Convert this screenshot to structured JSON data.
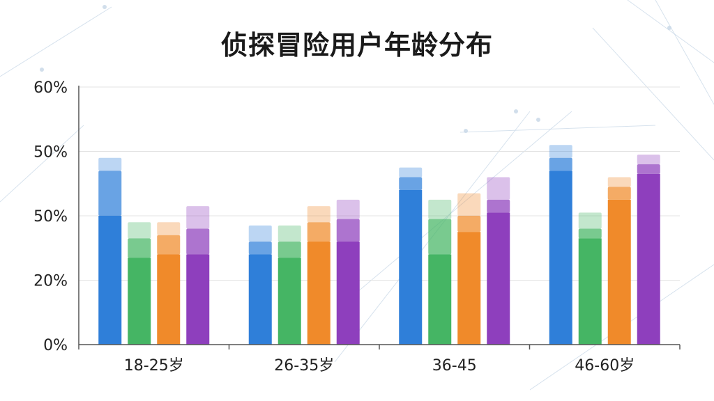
{
  "chart_data": {
    "type": "bar",
    "title": "侦探冒险用户年龄分布",
    "categories": [
      "18-25岁",
      "26-35岁",
      "36-45",
      "46-60岁"
    ],
    "y_tick_labels": [
      "0%",
      "20%",
      "50%",
      "50%",
      "60%"
    ],
    "ylim": [
      0,
      80
    ],
    "grid": true,
    "series": [
      {
        "values": [
          58,
          37,
          55,
          62
        ],
        "overlay": [
          54,
          32,
          52,
          58
        ],
        "base": [
          40,
          28,
          48,
          54
        ],
        "color": "#2f7fd9"
      },
      {
        "values": [
          38,
          37,
          45,
          41
        ],
        "overlay": [
          33,
          32,
          39,
          36
        ],
        "base": [
          27,
          27,
          28,
          33
        ],
        "color": "#45b564"
      },
      {
        "values": [
          38,
          43,
          47,
          52
        ],
        "overlay": [
          34,
          38,
          40,
          49
        ],
        "base": [
          28,
          32,
          35,
          45
        ],
        "color": "#f08a2a"
      },
      {
        "values": [
          43,
          45,
          52,
          59
        ],
        "overlay": [
          36,
          39,
          45,
          56
        ],
        "base": [
          28,
          32,
          41,
          53
        ],
        "color": "#8e3fbd"
      }
    ]
  }
}
